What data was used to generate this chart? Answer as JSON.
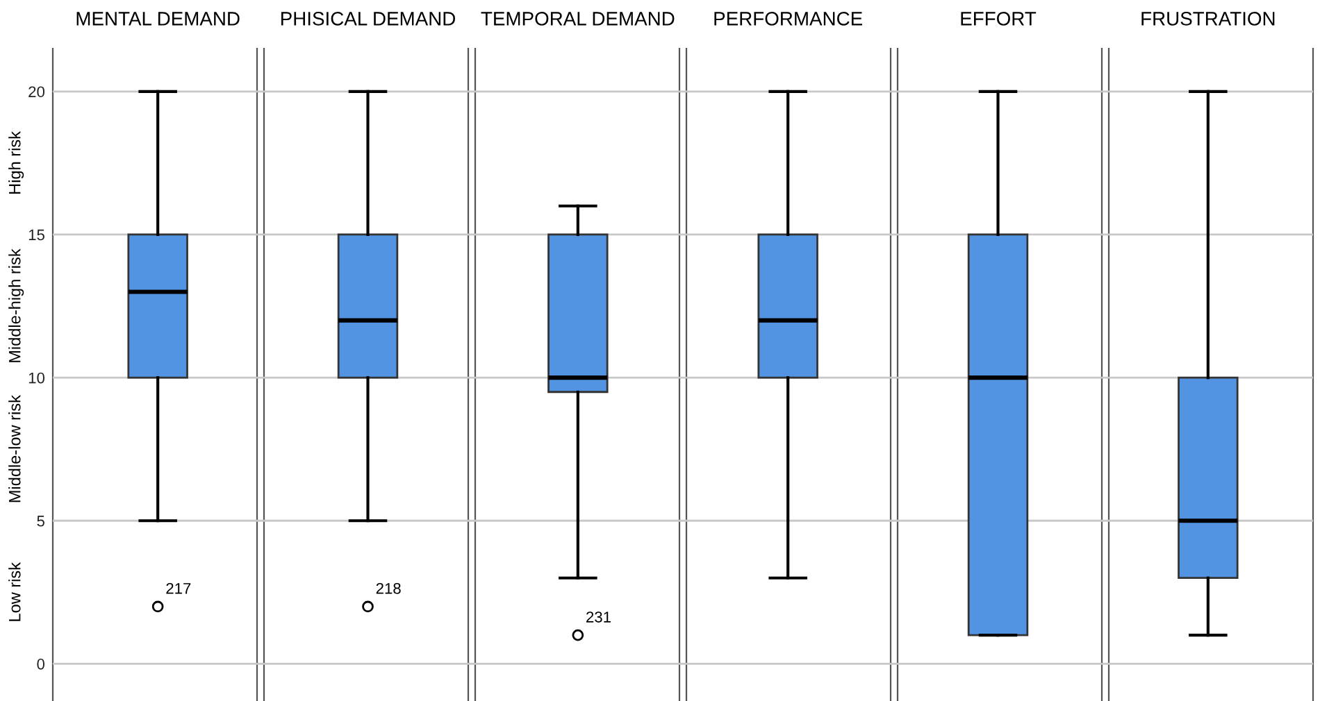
{
  "chart_data": {
    "type": "box",
    "categories": [
      "MENTAL DEMAND",
      "PHISICAL DEMAND",
      "TEMPORAL DEMAND",
      "PERFORMANCE",
      "EFFORT",
      "FRUSTRATION"
    ],
    "ylim": [
      -1.3,
      21.5
    ],
    "yticks": [
      0,
      5,
      10,
      15,
      20
    ],
    "grid": "y",
    "annotations": [
      "217",
      "218",
      "231",
      "Low risk",
      "Middle-low risk",
      "Middle-high risk",
      "High risk"
    ],
    "series": [
      {
        "color": "#5294e2",
        "boxes": [
          {
            "low": 5,
            "q1": 10,
            "median": 13,
            "q3": 15,
            "high": 20,
            "outliers": [
              2
            ]
          },
          {
            "low": 5,
            "q1": 10,
            "median": 12,
            "q3": 15,
            "high": 20,
            "outliers": [
              2
            ]
          },
          {
            "low": 3,
            "q1": 9.5,
            "median": 10,
            "q3": 15,
            "high": 16,
            "outliers": [
              1
            ]
          },
          {
            "low": 3,
            "q1": 10,
            "median": 12,
            "q3": 15,
            "high": 20
          },
          {
            "low": 1,
            "q1": 1,
            "median": 10,
            "q3": 15,
            "high": 20
          },
          {
            "low": 1,
            "q1": 3,
            "median": 5,
            "q3": 10,
            "high": 20
          }
        ]
      }
    ]
  }
}
